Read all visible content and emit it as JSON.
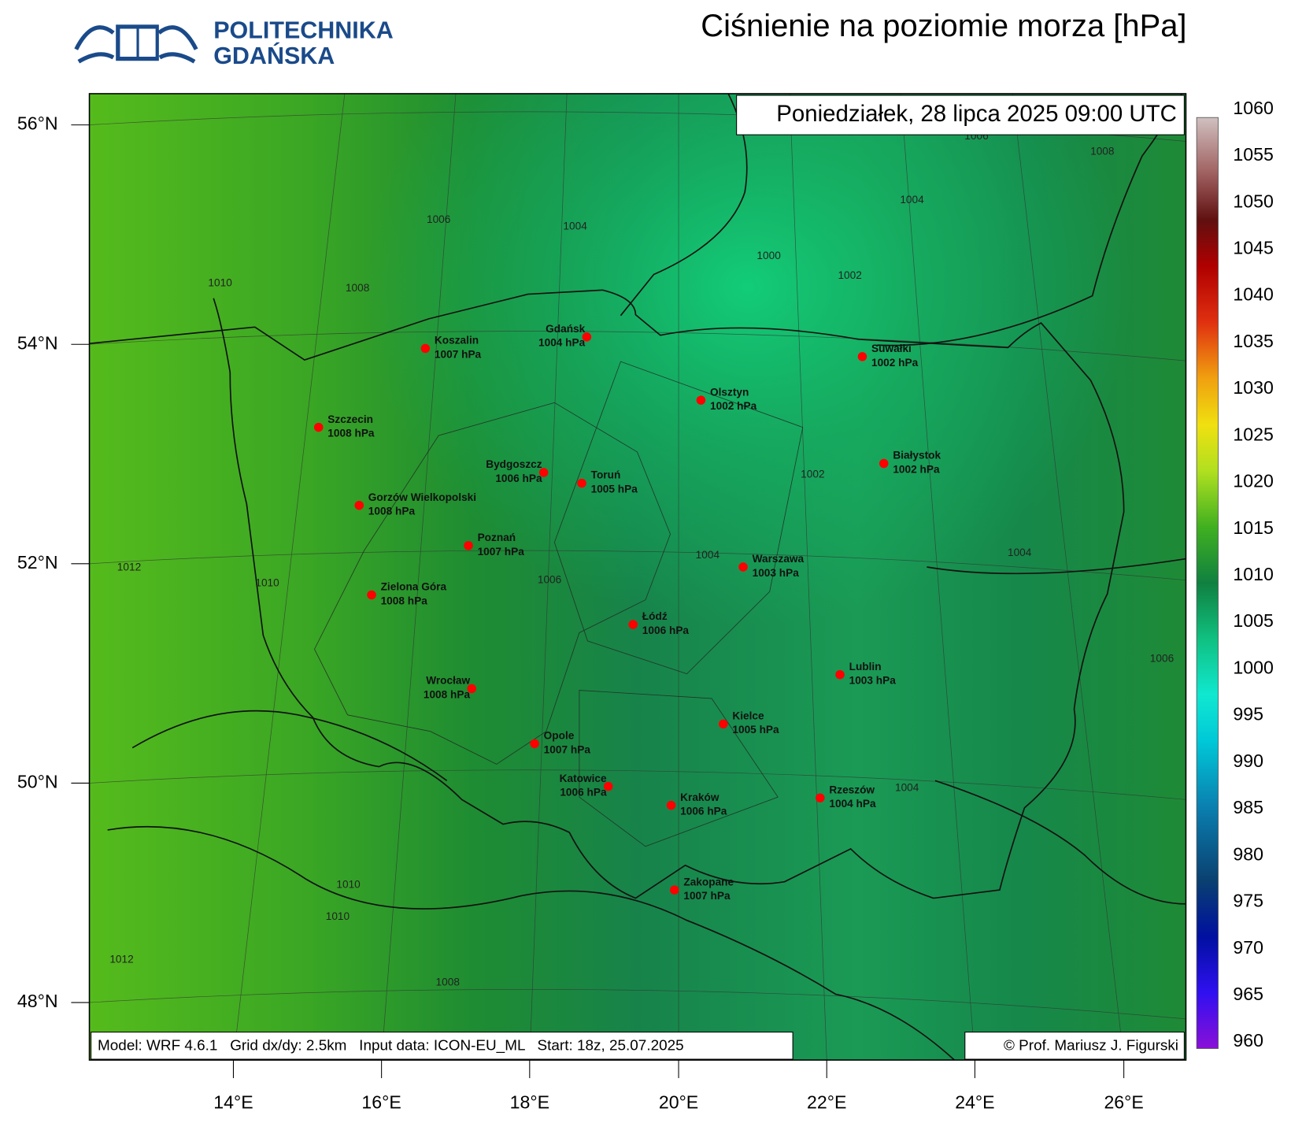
{
  "header": {
    "logo_line1": "POLITECHNIKA",
    "logo_line2": "GDAŃSKA",
    "title": "Ciśnienie na poziomie morza [hPa]"
  },
  "map": {
    "date": "Poniedziałek, 28 lipca 2025 09:00 UTC",
    "footer_left": "Model: WRF 4.6.1   Grid dx/dy: 2.5km   Input data: ICON-EU_ML   Start: 18z, 25.07.2025",
    "footer_right": "© Prof. Mariusz J. Figurski",
    "lat_labels": [
      "56°N",
      "54°N",
      "52°N",
      "50°N",
      "48°N"
    ],
    "lon_labels": [
      "14°E",
      "16°E",
      "18°E",
      "20°E",
      "22°E",
      "24°E",
      "26°E"
    ],
    "cities": [
      {
        "name": "Koszalin",
        "pressure": "1007 hPa"
      },
      {
        "name": "Gdańsk",
        "pressure": "1004 hPa"
      },
      {
        "name": "Suwałki",
        "pressure": "1002 hPa"
      },
      {
        "name": "Olsztyn",
        "pressure": "1002 hPa"
      },
      {
        "name": "Szczecin",
        "pressure": "1008 hPa"
      },
      {
        "name": "Białystok",
        "pressure": "1002 hPa"
      },
      {
        "name": "Bydgoszcz",
        "pressure": "1006 hPa"
      },
      {
        "name": "Toruń",
        "pressure": "1005 hPa"
      },
      {
        "name": "Gorzów Wielkopolski",
        "pressure": "1008 hPa"
      },
      {
        "name": "Poznań",
        "pressure": "1007 hPa"
      },
      {
        "name": "Warszawa",
        "pressure": "1003 hPa"
      },
      {
        "name": "Zielona Góra",
        "pressure": "1008 hPa"
      },
      {
        "name": "Łódź",
        "pressure": "1006 hPa"
      },
      {
        "name": "Lublin",
        "pressure": "1003 hPa"
      },
      {
        "name": "Wrocław",
        "pressure": "1008 hPa"
      },
      {
        "name": "Kielce",
        "pressure": "1005 hPa"
      },
      {
        "name": "Opole",
        "pressure": "1007 hPa"
      },
      {
        "name": "Katowice",
        "pressure": "1006 hPa"
      },
      {
        "name": "Kraków",
        "pressure": "1006 hPa"
      },
      {
        "name": "Rzeszów",
        "pressure": "1004 hPa"
      },
      {
        "name": "Zakopane",
        "pressure": "1007 hPa"
      }
    ],
    "contour_labels": [
      "1006",
      "1004",
      "1000",
      "1002",
      "1004",
      "1008",
      "1006",
      "1010",
      "1008",
      "1012",
      "1010",
      "1006",
      "1004",
      "1002",
      "1004",
      "1006",
      "1004",
      "1010",
      "1010",
      "1012",
      "1008"
    ]
  },
  "colorbar": {
    "ticks": [
      1060,
      1055,
      1050,
      1045,
      1040,
      1035,
      1030,
      1025,
      1020,
      1015,
      1010,
      1005,
      1000,
      995,
      990,
      985,
      980,
      975,
      970,
      965,
      960
    ]
  }
}
